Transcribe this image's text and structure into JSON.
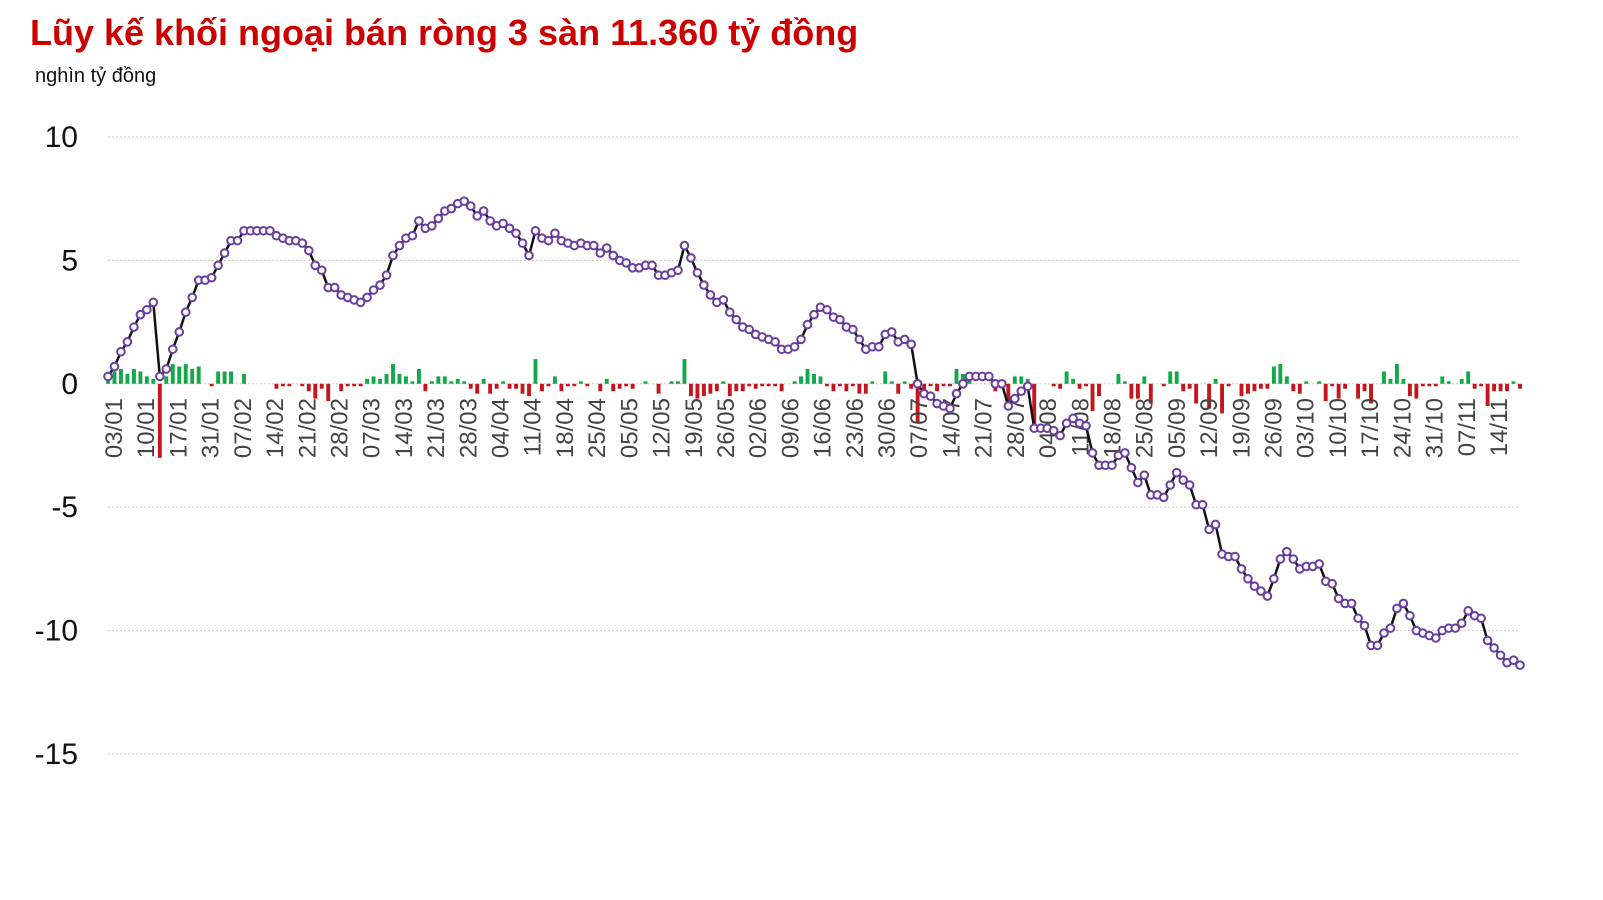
{
  "title": "Lũy kế khối ngoại bán ròng 3 sàn 11.360 tỷ đồng",
  "unit": "nghìn tỷ đồng",
  "colors": {
    "title": "#cc0000",
    "line": "#111111",
    "marker_stroke": "#6a3fa0",
    "marker_fill": "#ffffff",
    "buy": "#13a84a",
    "sell": "#c4161c",
    "grid": "#cccccc"
  },
  "chart_data": {
    "type": "line",
    "title": "Lũy kế khối ngoại bán ròng 3 sàn 11.360 tỷ đồng",
    "ylabel": "nghìn tỷ đồng",
    "ylim": [
      -15,
      10
    ],
    "yticks": [
      10,
      5,
      0,
      -5,
      -10,
      -15
    ],
    "grid": true,
    "x_tick_labels": [
      "03/01",
      "10/01",
      "17/01",
      "31/01",
      "07/02",
      "14/02",
      "21/02",
      "28/02",
      "07/03",
      "14/03",
      "21/03",
      "28/03",
      "04/04",
      "11/04",
      "18/04",
      "25/04",
      "05/05",
      "12/05",
      "19/05",
      "26/05",
      "02/06",
      "09/06",
      "16/06",
      "23/06",
      "30/06",
      "07/07",
      "14/07",
      "21/07",
      "28/07",
      "04/08",
      "11/08",
      "18/08",
      "25/08",
      "05/09",
      "12/09",
      "19/09",
      "26/09",
      "03/10",
      "10/10",
      "17/10",
      "24/10",
      "31/10",
      "07/11",
      "14/11"
    ],
    "series": [
      {
        "kind": "line",
        "values": [
          0.3,
          0.7,
          1.3,
          1.7,
          2.3,
          2.8,
          3.0,
          3.3,
          0.3,
          0.6,
          1.4,
          2.1,
          2.9,
          3.5,
          4.2,
          4.2,
          4.3,
          4.8,
          5.3,
          5.8,
          5.8,
          6.2,
          6.2,
          6.2,
          6.2,
          6.2,
          6.0,
          5.9,
          5.8,
          5.8,
          5.7,
          5.4,
          4.8,
          4.6,
          3.9,
          3.9,
          3.6,
          3.5,
          3.4,
          3.3,
          3.5,
          3.8,
          4.0,
          4.4,
          5.2,
          5.6,
          5.9,
          6.0,
          6.6,
          6.3,
          6.4,
          6.7,
          7.0,
          7.1,
          7.3,
          7.4,
          7.2,
          6.8,
          7.0,
          6.6,
          6.4,
          6.5,
          6.3,
          6.1,
          5.7,
          5.2,
          6.2,
          5.9,
          5.8,
          6.1,
          5.8,
          5.7,
          5.6,
          5.7,
          5.6,
          5.6,
          5.3,
          5.5,
          5.2,
          5.0,
          4.9,
          4.7,
          4.7,
          4.8,
          4.8,
          4.4,
          4.4,
          4.5,
          4.6,
          5.6,
          5.1,
          4.5,
          4.0,
          3.6,
          3.3,
          3.4,
          2.9,
          2.6,
          2.3,
          2.2,
          2.0,
          1.9,
          1.8,
          1.7,
          1.4,
          1.4,
          1.5,
          1.8,
          2.4,
          2.8,
          3.1,
          3.0,
          2.7,
          2.6,
          2.3,
          2.2,
          1.8,
          1.4,
          1.5,
          1.5,
          2.0,
          2.1,
          1.7,
          1.8,
          1.6,
          0.0,
          -0.4,
          -0.5,
          -0.8,
          -0.9,
          -1.0,
          -0.4,
          0.0,
          0.3,
          0.3,
          0.3,
          0.3,
          0.0,
          0.0,
          -0.9,
          -0.6,
          -0.3,
          -0.1,
          -1.8,
          -1.8,
          -1.8,
          -1.9,
          -2.1,
          -1.6,
          -1.4,
          -1.6,
          -1.7,
          -2.8,
          -3.3,
          -3.3,
          -3.3,
          -2.9,
          -2.8,
          -3.4,
          -4.0,
          -3.7,
          -4.5,
          -4.5,
          -4.6,
          -4.1,
          -3.6,
          -3.9,
          -4.1,
          -4.9,
          -4.9,
          -5.9,
          -5.7,
          -6.9,
          -7.0,
          -7.0,
          -7.5,
          -7.9,
          -8.2,
          -8.4,
          -8.6,
          -7.9,
          -7.1,
          -6.8,
          -7.1,
          -7.5,
          -7.4,
          -7.4,
          -7.3,
          -8.0,
          -8.1,
          -8.7,
          -8.9,
          -8.9,
          -9.5,
          -9.8,
          -10.6,
          -10.6,
          -10.1,
          -9.9,
          -9.1,
          -8.9,
          -9.4,
          -10.0,
          -10.1,
          -10.2,
          -10.3,
          -10.0,
          -9.9,
          -9.9,
          -9.7,
          -9.2,
          -9.4,
          -9.5,
          -10.4,
          -10.7,
          -11.0,
          -11.3,
          -11.2,
          -11.4
        ]
      },
      {
        "kind": "bar",
        "values": [
          0.3,
          0.5,
          0.6,
          0.4,
          0.6,
          0.5,
          0.3,
          0.2,
          -3.0,
          0.3,
          0.8,
          0.7,
          0.8,
          0.6,
          0.7,
          0.0,
          -0.1,
          0.5,
          0.5,
          0.5,
          0.0,
          0.4,
          0.0,
          0.0,
          0.0,
          0.0,
          -0.2,
          -0.1,
          -0.1,
          0.0,
          -0.1,
          -0.3,
          -0.6,
          -0.2,
          -0.7,
          0.0,
          -0.3,
          -0.1,
          -0.1,
          -0.1,
          0.2,
          0.3,
          0.2,
          0.4,
          0.8,
          0.4,
          0.3,
          0.1,
          0.6,
          -0.3,
          0.1,
          0.3,
          0.3,
          0.1,
          0.2,
          0.1,
          -0.2,
          -0.4,
          0.2,
          -0.4,
          -0.2,
          0.1,
          -0.2,
          -0.2,
          -0.4,
          -0.5,
          1.0,
          -0.3,
          -0.1,
          0.3,
          -0.3,
          -0.1,
          -0.1,
          0.1,
          -0.1,
          0.0,
          -0.3,
          0.2,
          -0.3,
          -0.2,
          -0.1,
          -0.2,
          0.0,
          0.1,
          0.0,
          -0.4,
          0.0,
          0.1,
          0.1,
          1.0,
          -0.5,
          -0.6,
          -0.5,
          -0.4,
          -0.3,
          0.1,
          -0.5,
          -0.3,
          -0.3,
          -0.1,
          -0.2,
          -0.1,
          -0.1,
          -0.1,
          -0.3,
          0.0,
          0.1,
          0.3,
          0.6,
          0.4,
          0.3,
          -0.1,
          -0.3,
          -0.1,
          -0.3,
          -0.1,
          -0.4,
          -0.4,
          0.1,
          0.0,
          0.5,
          0.1,
          -0.4,
          0.1,
          -0.2,
          -1.6,
          -0.4,
          -0.1,
          -0.3,
          -0.1,
          -0.1,
          0.6,
          0.4,
          0.3,
          0.0,
          0.0,
          0.0,
          -0.3,
          0.0,
          -0.9,
          0.3,
          0.3,
          0.2,
          -1.7,
          0.0,
          0.0,
          -0.1,
          -0.2,
          0.5,
          0.2,
          -0.2,
          -0.1,
          -1.1,
          -0.5,
          0.0,
          0.0,
          0.4,
          0.1,
          -0.6,
          -0.6,
          0.3,
          -0.8,
          0.0,
          -0.1,
          0.5,
          0.5,
          -0.3,
          -0.2,
          -0.8,
          0.0,
          -1.0,
          0.2,
          -1.2,
          -0.1,
          0.0,
          -0.5,
          -0.4,
          -0.3,
          -0.2,
          -0.2,
          0.7,
          0.8,
          0.3,
          -0.3,
          -0.4,
          0.1,
          0.0,
          0.1,
          -0.7,
          -0.1,
          -0.6,
          -0.2,
          0.0,
          -0.6,
          -0.3,
          -0.8,
          0.0,
          0.5,
          0.2,
          0.8,
          0.2,
          -0.5,
          -0.6,
          -0.1,
          -0.1,
          -0.1,
          0.3,
          0.1,
          0.0,
          0.2,
          0.5,
          -0.2,
          -0.1,
          -0.9,
          -0.3,
          -0.3,
          -0.3,
          0.1,
          -0.2
        ]
      }
    ]
  }
}
